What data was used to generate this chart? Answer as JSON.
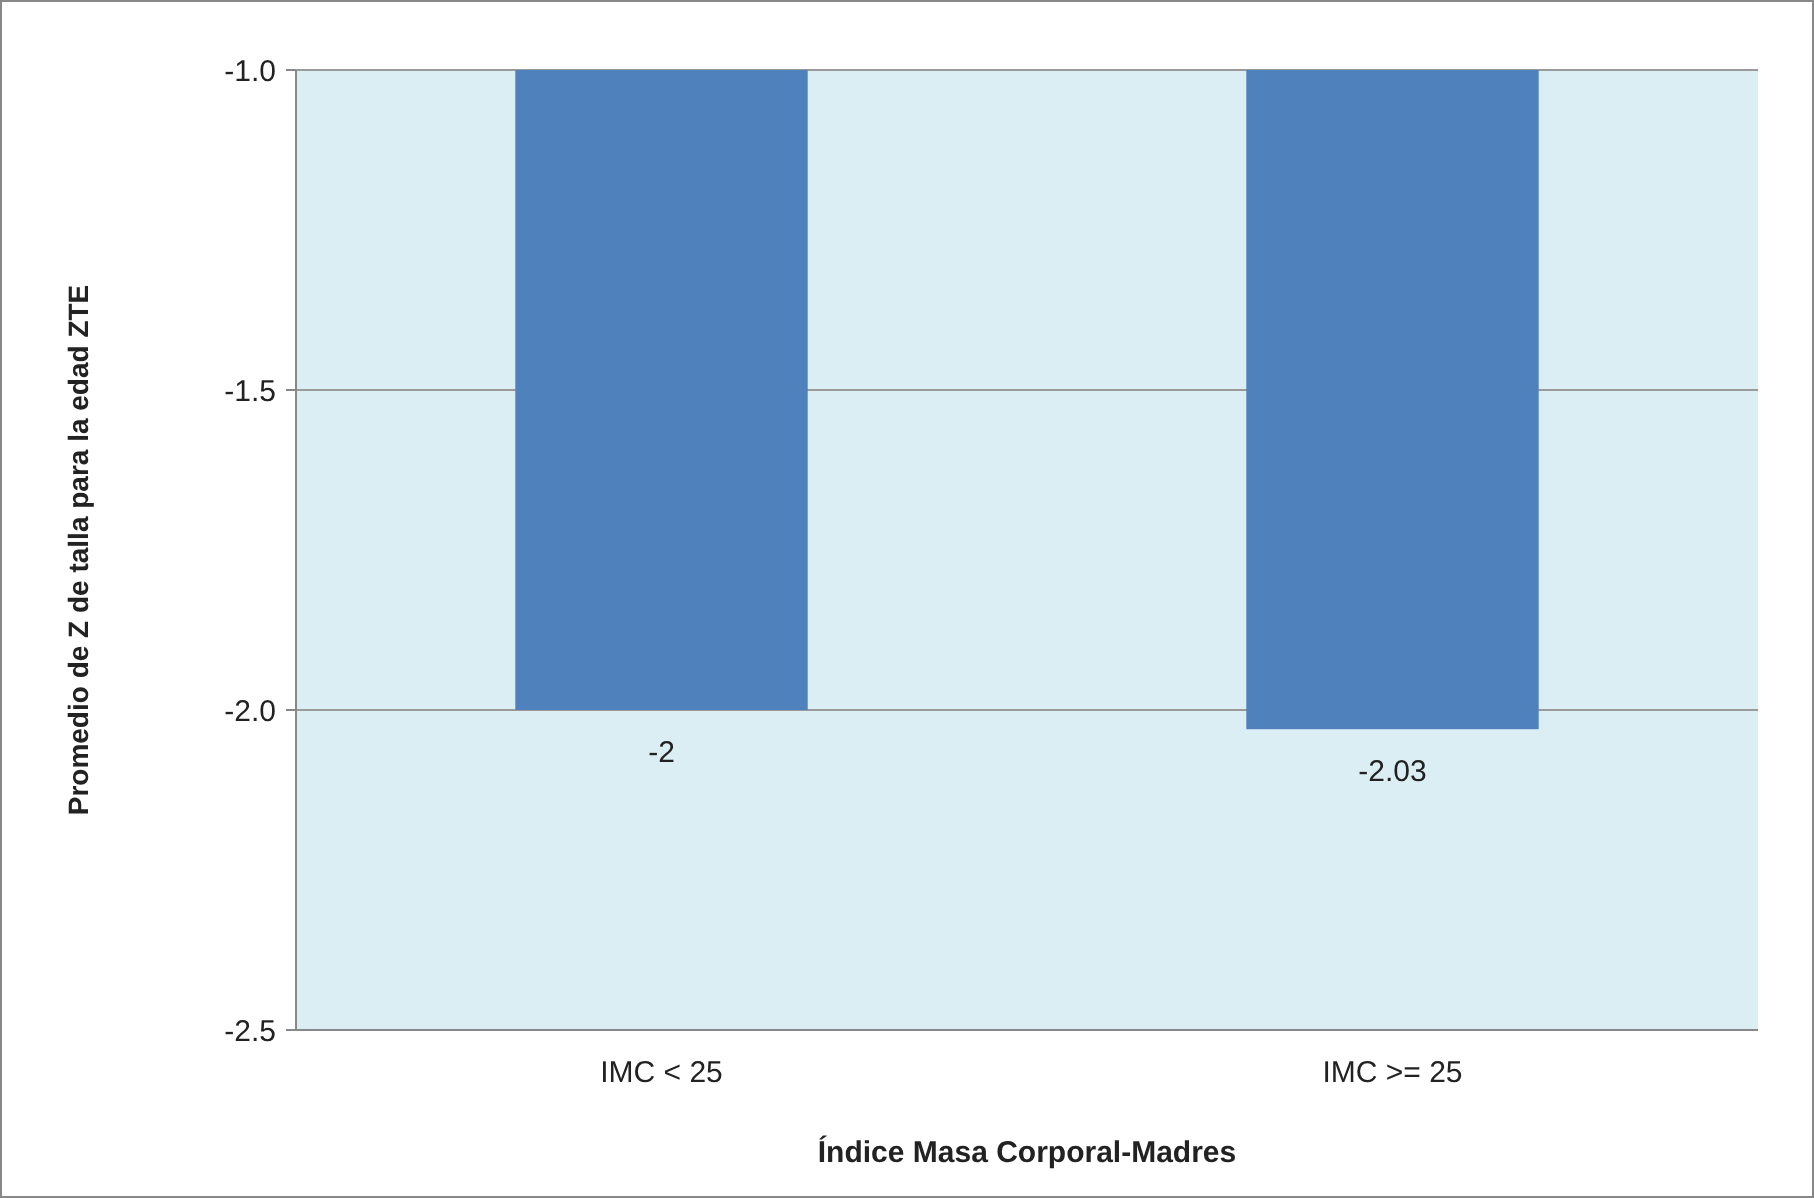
{
  "chart_data": {
    "type": "bar",
    "xlabel": "Índice Masa Corporal-Madres",
    "ylabel": "Promedio de Z de talla para la edad  ZTE",
    "categories": [
      "IMC < 25",
      "IMC >= 25"
    ],
    "values": [
      -2,
      -2.03
    ],
    "color": "#4f81bd",
    "ylim": [
      -2.5,
      -1.0
    ],
    "yticks": [
      {
        "value": -2.5,
        "label": "-2.5"
      },
      {
        "value": -2.0,
        "label": "-2.0"
      },
      {
        "value": -1.5,
        "label": "-1.5"
      },
      {
        "value": -1.0,
        "label": "-1.0"
      }
    ],
    "grid": "y",
    "data_labels": true
  }
}
